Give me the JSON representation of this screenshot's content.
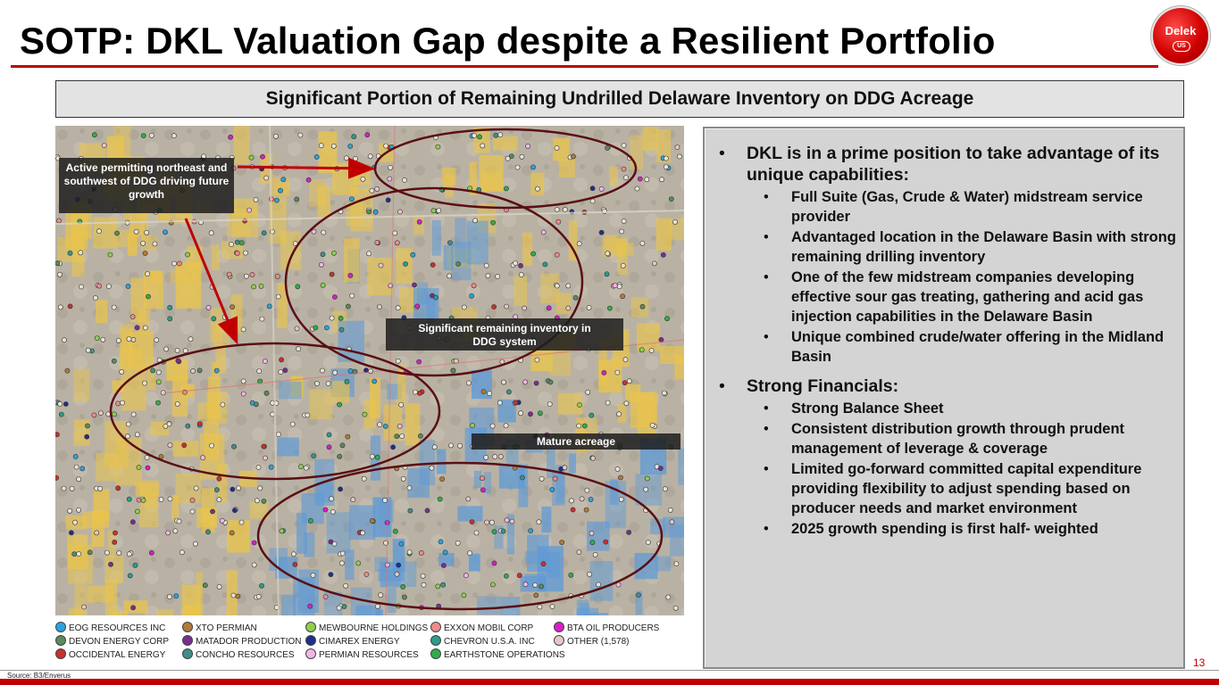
{
  "title": "SOTP: DKL Valuation Gap despite a Resilient Portfolio",
  "logo": {
    "word": "Delek",
    "badge": "US"
  },
  "subtitle": "Significant Portion of Remaining Undrilled Delaware Inventory on DDG Acreage",
  "map": {
    "callouts": {
      "active": "Active permitting northeast and southwest of DDG driving future growth",
      "inventory": "Significant remaining inventory in DDG system",
      "mature": "Mature acreage"
    }
  },
  "legend": [
    {
      "label": "EOG RESOURCES INC",
      "color": "#29a3e0"
    },
    {
      "label": "DEVON ENERGY CORP",
      "color": "#5a8a5e"
    },
    {
      "label": "OCCIDENTAL ENERGY",
      "color": "#c8312f"
    },
    {
      "label": "XTO PERMIAN",
      "color": "#b07a3a"
    },
    {
      "label": "MATADOR PRODUCTION",
      "color": "#7a2e8e"
    },
    {
      "label": "CONCHO RESOURCES",
      "color": "#3f8f8a"
    },
    {
      "label": "MEWBOURNE HOLDINGS",
      "color": "#8fcf4a"
    },
    {
      "label": "CIMAREX ENERGY",
      "color": "#1f2f8a"
    },
    {
      "label": "PERMIAN RESOURCES",
      "color": "#f2b6e6"
    },
    {
      "label": "EXXON MOBIL CORP",
      "color": "#f08a8a"
    },
    {
      "label": "CHEVRON U.S.A. INC",
      "color": "#2e9b8a"
    },
    {
      "label": "EARTHSTONE OPERATIONS",
      "color": "#2fae4a"
    },
    {
      "label": "BTA OIL PRODUCERS",
      "color": "#d61fc8"
    },
    {
      "label": "OTHER (1,578)",
      "color": "#e6c7c7"
    }
  ],
  "source": "Source: B3/Enverus",
  "page_number": "13",
  "panel": {
    "bullets": [
      {
        "text": "DKL is in a prime position to take advantage of its unique capabilities:",
        "sub": [
          "Full Suite (Gas, Crude & Water) midstream service provider",
          "Advantaged location in the Delaware Basin with strong remaining drilling inventory",
          "One of the few midstream companies developing effective sour gas treating, gathering and acid gas injection capabilities in the Delaware Basin",
          "Unique combined crude/water offering in the Midland Basin"
        ]
      },
      {
        "text": "Strong Financials:",
        "sub": [
          "Strong Balance Sheet",
          "Consistent distribution growth through prudent management of leverage & coverage",
          "Limited go-forward committed capital expenditure providing flexibility to adjust spending based on producer needs and market environment",
          "2025 growth spending is first half- weighted"
        ]
      }
    ]
  }
}
